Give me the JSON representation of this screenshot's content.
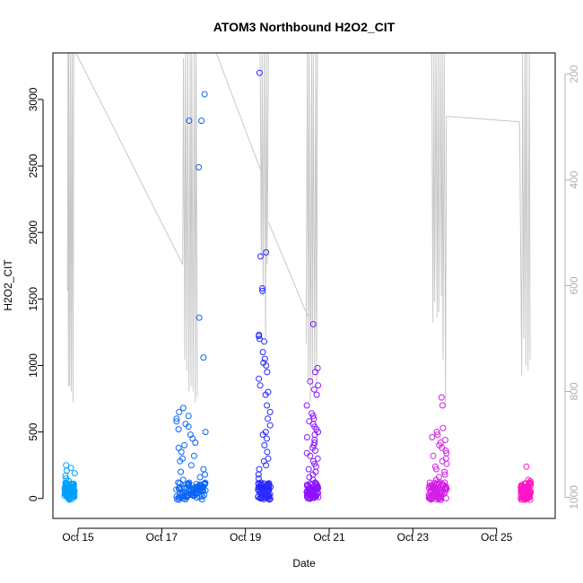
{
  "chart_data": {
    "type": "scatter",
    "title": "ATOM3 Northbound H2O2_CIT",
    "xlabel": "Date",
    "ylabel": "H2O2_CIT",
    "xlim_days": [
      14.4,
      26.4
    ],
    "ylim": [
      -150,
      3350
    ],
    "y2lim": [
      160,
      1040
    ],
    "y2_inverted": true,
    "x_ticks": [
      {
        "value": 15,
        "label": "Oct 15"
      },
      {
        "value": 17,
        "label": "Oct 17"
      },
      {
        "value": 19,
        "label": "Oct 19"
      },
      {
        "value": 21,
        "label": "Oct 21"
      },
      {
        "value": 23,
        "label": "Oct 23"
      },
      {
        "value": 25,
        "label": "Oct 25"
      }
    ],
    "y_ticks": [
      0,
      500,
      1000,
      1500,
      2000,
      2500,
      3000
    ],
    "y2_ticks": [
      200,
      400,
      600,
      800,
      1000
    ],
    "colors": {
      "axis": "#000000",
      "altitude_line": "#c8c8c8",
      "right_axis": "#b0b0b0",
      "palette": [
        "#00a0ff",
        "#0a64f5",
        "#2828ff",
        "#8c14ff",
        "#d21ee6",
        "#ff14c8"
      ]
    },
    "scatter_series": [
      {
        "center": 14.8,
        "spread": 0.12,
        "color_index": 0,
        "base_values": [
          10,
          25,
          40,
          60,
          85,
          110,
          140,
          170,
          200,
          230,
          250
        ],
        "values": [
          5,
          8,
          12,
          15,
          18,
          20,
          22,
          25,
          28,
          30,
          35,
          38,
          40,
          45,
          50,
          55,
          60,
          65,
          70,
          75,
          80,
          90,
          100,
          110,
          120,
          130,
          150,
          170,
          190,
          210,
          230,
          250
        ]
      },
      {
        "center": 17.7,
        "spread": 0.35,
        "color_index": 1,
        "values": [
          -10,
          5,
          10,
          15,
          20,
          25,
          30,
          35,
          40,
          45,
          50,
          55,
          60,
          70,
          80,
          90,
          100,
          110,
          120,
          140,
          160,
          180,
          200,
          220,
          250,
          280,
          300,
          320,
          350,
          380,
          400,
          420,
          450,
          480,
          500,
          520,
          540,
          560,
          580,
          600,
          620,
          650,
          680,
          1060,
          1360,
          2490,
          2840,
          2840,
          3040
        ]
      },
      {
        "center": 19.45,
        "spread": 0.15,
        "color_index": 2,
        "values": [
          20,
          30,
          40,
          50,
          60,
          70,
          80,
          90,
          100,
          110,
          120,
          150,
          180,
          220,
          250,
          280,
          300,
          350,
          400,
          450,
          480,
          500,
          550,
          600,
          650,
          700,
          780,
          800,
          850,
          900,
          950,
          1000,
          1020,
          1050,
          1100,
          1180,
          1200,
          1220,
          1230,
          1560,
          1580,
          1820,
          1850,
          3200
        ]
      },
      {
        "center": 20.6,
        "spread": 0.14,
        "color_index": 3,
        "values": [
          0,
          10,
          20,
          40,
          60,
          80,
          100,
          120,
          140,
          160,
          180,
          200,
          220,
          240,
          260,
          280,
          300,
          320,
          340,
          360,
          380,
          400,
          420,
          440,
          460,
          480,
          500,
          520,
          540,
          560,
          580,
          600,
          620,
          640,
          700,
          780,
          820,
          850,
          880,
          950,
          980,
          1310
        ]
      },
      {
        "center": 23.6,
        "spread": 0.22,
        "color_index": 4,
        "values": [
          0,
          5,
          10,
          15,
          20,
          25,
          30,
          40,
          50,
          60,
          70,
          80,
          90,
          100,
          110,
          120,
          140,
          160,
          180,
          200,
          220,
          240,
          260,
          280,
          300,
          320,
          340,
          360,
          380,
          400,
          420,
          440,
          460,
          480,
          500,
          530,
          700,
          760
        ]
      },
      {
        "center": 25.7,
        "spread": 0.12,
        "color_index": 5,
        "values": [
          0,
          5,
          10,
          15,
          20,
          25,
          30,
          35,
          40,
          45,
          50,
          55,
          60,
          65,
          70,
          75,
          80,
          85,
          90,
          95,
          100,
          110,
          120,
          130,
          140,
          240
        ]
      }
    ],
    "altitude_segments": [
      {
        "x": [
          14.75,
          14.76,
          14.77,
          14.78,
          14.8,
          14.82,
          14.84,
          14.86,
          14.88,
          14.9,
          14.92
        ],
        "y2": [
          610,
          160,
          790,
          160,
          790,
          160,
          800,
          160,
          820,
          160,
          160
        ]
      },
      {
        "x": [
          14.95,
          17.5
        ],
        "y2": [
          160,
          560
        ]
      },
      {
        "x": [
          17.5,
          17.52,
          17.55,
          17.57,
          17.6,
          17.62,
          17.65,
          17.68,
          17.7,
          17.72,
          17.75,
          17.78,
          17.8,
          17.82,
          17.85
        ],
        "y2": [
          560,
          170,
          740,
          160,
          760,
          160,
          800,
          160,
          790,
          160,
          800,
          160,
          820,
          160,
          810
        ]
      },
      {
        "x": [
          18.3,
          19.45
        ],
        "y2": [
          160,
          400
        ]
      },
      {
        "x": [
          19.35,
          19.38,
          19.4,
          19.42,
          19.45,
          19.48,
          19.5,
          19.52,
          19.55
        ],
        "y2": [
          160,
          550,
          160,
          620,
          160,
          700,
          160,
          560,
          160
        ]
      },
      {
        "x": [
          19.55,
          20.5
        ],
        "y2": [
          480,
          660
        ]
      },
      {
        "x": [
          20.45,
          20.48,
          20.5,
          20.52,
          20.55,
          20.58,
          20.6,
          20.62,
          20.65,
          20.68,
          20.7,
          20.72
        ],
        "y2": [
          710,
          160,
          780,
          160,
          820,
          160,
          790,
          160,
          760,
          160,
          790,
          160
        ]
      },
      {
        "x": [
          23.45,
          23.48,
          23.5,
          23.52,
          23.55,
          23.58,
          23.6,
          23.62,
          23.65,
          23.68,
          23.7,
          23.72,
          23.75,
          23.78,
          23.8
        ],
        "y2": [
          160,
          670,
          160,
          630,
          160,
          660,
          160,
          650,
          160,
          620,
          160,
          740,
          160,
          830,
          280
        ]
      },
      {
        "x": [
          23.8,
          25.55
        ],
        "y2": [
          280,
          290
        ]
      },
      {
        "x": [
          25.55,
          25.6,
          25.62,
          25.65,
          25.68,
          25.7,
          25.72,
          25.75,
          25.78,
          25.8
        ],
        "y2": [
          290,
          770,
          160,
          700,
          160,
          750,
          160,
          760,
          160,
          740
        ]
      }
    ]
  }
}
